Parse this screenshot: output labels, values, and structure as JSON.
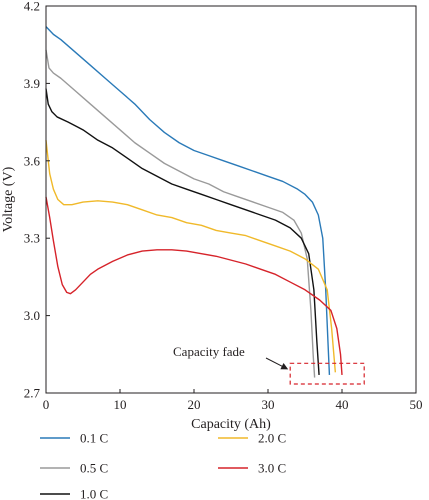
{
  "chart_data": {
    "type": "line",
    "xlabel": "Capacity (Ah)",
    "ylabel": "Voltage (V)",
    "xlim": [
      0,
      50
    ],
    "ylim": [
      2.7,
      4.2
    ],
    "xticks": [
      0,
      10,
      20,
      30,
      40,
      50
    ],
    "yticks": [
      2.7,
      3.0,
      3.3,
      3.6,
      3.9,
      4.2
    ],
    "xtick_labels": [
      "0",
      "10",
      "20",
      "30",
      "40",
      "50"
    ],
    "ytick_labels": [
      "2.7",
      "3.0",
      "3.3",
      "3.6",
      "3.9",
      "4.2"
    ],
    "grid": false,
    "legend_position": "bottom",
    "series": [
      {
        "name": "0.1 C",
        "color": "#2a7ab8",
        "points": [
          [
            0,
            4.12
          ],
          [
            1,
            4.09
          ],
          [
            2,
            4.07
          ],
          [
            4,
            4.02
          ],
          [
            6,
            3.97
          ],
          [
            8,
            3.92
          ],
          [
            10,
            3.87
          ],
          [
            12,
            3.82
          ],
          [
            14,
            3.76
          ],
          [
            16,
            3.71
          ],
          [
            18,
            3.67
          ],
          [
            20,
            3.64
          ],
          [
            22,
            3.62
          ],
          [
            24,
            3.6
          ],
          [
            26,
            3.58
          ],
          [
            28,
            3.56
          ],
          [
            30,
            3.54
          ],
          [
            32,
            3.52
          ],
          [
            34,
            3.49
          ],
          [
            35,
            3.47
          ],
          [
            36,
            3.44
          ],
          [
            36.8,
            3.39
          ],
          [
            37.4,
            3.3
          ],
          [
            37.8,
            3.1
          ],
          [
            38.1,
            2.9
          ],
          [
            38.3,
            2.77
          ]
        ]
      },
      {
        "name": "0.5 C",
        "color": "#9a9a9a",
        "points": [
          [
            0,
            4.03
          ],
          [
            0.4,
            3.96
          ],
          [
            1,
            3.94
          ],
          [
            2,
            3.92
          ],
          [
            4,
            3.87
          ],
          [
            6,
            3.82
          ],
          [
            8,
            3.77
          ],
          [
            10,
            3.72
          ],
          [
            12,
            3.67
          ],
          [
            14,
            3.63
          ],
          [
            16,
            3.59
          ],
          [
            18,
            3.56
          ],
          [
            20,
            3.53
          ],
          [
            22,
            3.51
          ],
          [
            24,
            3.48
          ],
          [
            26,
            3.46
          ],
          [
            28,
            3.44
          ],
          [
            30,
            3.42
          ],
          [
            32,
            3.4
          ],
          [
            33.5,
            3.37
          ],
          [
            34.5,
            3.32
          ],
          [
            35.3,
            3.22
          ],
          [
            35.8,
            3.02
          ],
          [
            36.1,
            2.85
          ],
          [
            36.3,
            2.76
          ]
        ]
      },
      {
        "name": "1.0 C",
        "color": "#111111",
        "points": [
          [
            0,
            3.88
          ],
          [
            0.3,
            3.82
          ],
          [
            0.8,
            3.79
          ],
          [
            1.5,
            3.77
          ],
          [
            3,
            3.75
          ],
          [
            5,
            3.72
          ],
          [
            7,
            3.68
          ],
          [
            9,
            3.65
          ],
          [
            11,
            3.61
          ],
          [
            13,
            3.57
          ],
          [
            15,
            3.54
          ],
          [
            17,
            3.51
          ],
          [
            19,
            3.49
          ],
          [
            21,
            3.47
          ],
          [
            23,
            3.45
          ],
          [
            25,
            3.43
          ],
          [
            27,
            3.41
          ],
          [
            29,
            3.39
          ],
          [
            31,
            3.37
          ],
          [
            33,
            3.34
          ],
          [
            34.5,
            3.3
          ],
          [
            35.5,
            3.24
          ],
          [
            36.2,
            3.1
          ],
          [
            36.6,
            2.9
          ],
          [
            36.9,
            2.77
          ]
        ]
      },
      {
        "name": "2.0 C",
        "color": "#f0b92a",
        "points": [
          [
            0,
            3.68
          ],
          [
            0.5,
            3.55
          ],
          [
            1,
            3.49
          ],
          [
            1.6,
            3.45
          ],
          [
            2.4,
            3.43
          ],
          [
            3.5,
            3.43
          ],
          [
            5,
            3.44
          ],
          [
            7,
            3.445
          ],
          [
            9,
            3.44
          ],
          [
            11,
            3.43
          ],
          [
            13,
            3.41
          ],
          [
            15,
            3.39
          ],
          [
            17,
            3.38
          ],
          [
            19,
            3.36
          ],
          [
            21,
            3.35
          ],
          [
            23,
            3.33
          ],
          [
            25,
            3.32
          ],
          [
            27,
            3.31
          ],
          [
            29,
            3.29
          ],
          [
            31,
            3.27
          ],
          [
            33,
            3.25
          ],
          [
            35,
            3.22
          ],
          [
            36.8,
            3.18
          ],
          [
            38,
            3.1
          ],
          [
            38.6,
            2.95
          ],
          [
            39.1,
            2.78
          ]
        ]
      },
      {
        "name": "3.0 C",
        "color": "#d6232a",
        "points": [
          [
            0,
            3.46
          ],
          [
            0.5,
            3.38
          ],
          [
            1,
            3.29
          ],
          [
            1.6,
            3.19
          ],
          [
            2.2,
            3.12
          ],
          [
            2.8,
            3.09
          ],
          [
            3.3,
            3.085
          ],
          [
            4,
            3.1
          ],
          [
            5,
            3.13
          ],
          [
            6,
            3.16
          ],
          [
            7,
            3.18
          ],
          [
            9,
            3.21
          ],
          [
            11,
            3.235
          ],
          [
            13,
            3.25
          ],
          [
            15,
            3.255
          ],
          [
            17,
            3.255
          ],
          [
            19,
            3.25
          ],
          [
            21,
            3.24
          ],
          [
            23,
            3.23
          ],
          [
            25,
            3.215
          ],
          [
            27,
            3.2
          ],
          [
            29,
            3.18
          ],
          [
            31,
            3.16
          ],
          [
            33,
            3.13
          ],
          [
            35,
            3.1
          ],
          [
            37,
            3.06
          ],
          [
            38.5,
            3.02
          ],
          [
            39.3,
            2.95
          ],
          [
            39.8,
            2.85
          ],
          [
            40,
            2.77
          ]
        ]
      }
    ],
    "annotations": [
      {
        "text": "Capacity fade",
        "box_x": [
          33,
          43
        ],
        "box_y": [
          2.735,
          2.815
        ]
      }
    ]
  }
}
